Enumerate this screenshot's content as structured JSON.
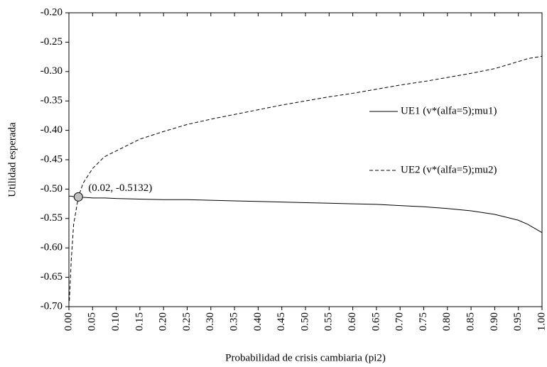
{
  "chart_data": {
    "type": "line",
    "x_label": "Probabilidad de crisis cambiaria (pi2)",
    "y_label": "Utilidad esperada",
    "x": [
      0.001,
      0.005,
      0.01,
      0.02,
      0.03,
      0.05,
      0.075,
      0.1,
      0.15,
      0.2,
      0.25,
      0.3,
      0.35,
      0.4,
      0.45,
      0.5,
      0.55,
      0.6,
      0.65,
      0.7,
      0.75,
      0.8,
      0.85,
      0.9,
      0.95,
      0.97,
      1.0
    ],
    "series": [
      {
        "name": "UE1 (v*(alfa=5);mu1)",
        "color": "#000000",
        "dash": "solid",
        "values": [
          -0.512,
          -0.512,
          -0.513,
          -0.5132,
          -0.514,
          -0.515,
          -0.515,
          -0.516,
          -0.517,
          -0.518,
          -0.518,
          -0.519,
          -0.52,
          -0.521,
          -0.522,
          -0.523,
          -0.524,
          -0.525,
          -0.526,
          -0.528,
          -0.53,
          -0.533,
          -0.537,
          -0.543,
          -0.553,
          -0.56,
          -0.574
        ]
      },
      {
        "name": "UE2 (v*(alfa=5);mu2)",
        "color": "#000000",
        "dash": "dashed",
        "values": [
          -0.69,
          -0.62,
          -0.56,
          -0.5132,
          -0.49,
          -0.465,
          -0.445,
          -0.435,
          -0.415,
          -0.402,
          -0.39,
          -0.381,
          -0.373,
          -0.365,
          -0.357,
          -0.35,
          -0.343,
          -0.337,
          -0.33,
          -0.323,
          -0.317,
          -0.31,
          -0.303,
          -0.295,
          -0.283,
          -0.278,
          -0.274
        ]
      }
    ],
    "annotation": {
      "text": "(0.02, -0.5132)",
      "x": 0.02,
      "y": -0.5132,
      "color": "#c0c0c0"
    },
    "xlim": [
      0,
      1
    ],
    "ylim": [
      -0.7,
      -0.2
    ],
    "xticks": [
      {
        "value": 0,
        "label": "0.00"
      },
      {
        "value": 0.05,
        "label": "0.05"
      },
      {
        "value": 0.1,
        "label": "0.10"
      },
      {
        "value": 0.15,
        "label": "0.15"
      },
      {
        "value": 0.2,
        "label": "0.20"
      },
      {
        "value": 0.25,
        "label": "0.25"
      },
      {
        "value": 0.3,
        "label": "0.30"
      },
      {
        "value": 0.35,
        "label": "0.35"
      },
      {
        "value": 0.4,
        "label": "0.40"
      },
      {
        "value": 0.45,
        "label": "0.45"
      },
      {
        "value": 0.5,
        "label": "0.50"
      },
      {
        "value": 0.55,
        "label": "0.55"
      },
      {
        "value": 0.6,
        "label": "0.60"
      },
      {
        "value": 0.65,
        "label": "0.65"
      },
      {
        "value": 0.7,
        "label": "0.70"
      },
      {
        "value": 0.75,
        "label": "0.75"
      },
      {
        "value": 0.8,
        "label": "0.80"
      },
      {
        "value": 0.85,
        "label": "0.85"
      },
      {
        "value": 0.9,
        "label": "0.90"
      },
      {
        "value": 0.95,
        "label": "0.95"
      },
      {
        "value": 1,
        "label": "1.00"
      }
    ],
    "yticks": [
      {
        "value": -0.7,
        "label": "-0.70"
      },
      {
        "value": -0.65,
        "label": "-0.65"
      },
      {
        "value": -0.6,
        "label": "-0.60"
      },
      {
        "value": -0.55,
        "label": "-0.55"
      },
      {
        "value": -0.5,
        "label": "-0.50"
      },
      {
        "value": -0.45,
        "label": "-0.45"
      },
      {
        "value": -0.4,
        "label": "-0.40"
      },
      {
        "value": -0.35,
        "label": "-0.35"
      },
      {
        "value": -0.3,
        "label": "-0.30"
      },
      {
        "value": -0.25,
        "label": "-0.25"
      },
      {
        "value": -0.2,
        "label": "-0.20"
      }
    ],
    "grid": false,
    "legend": "right"
  }
}
